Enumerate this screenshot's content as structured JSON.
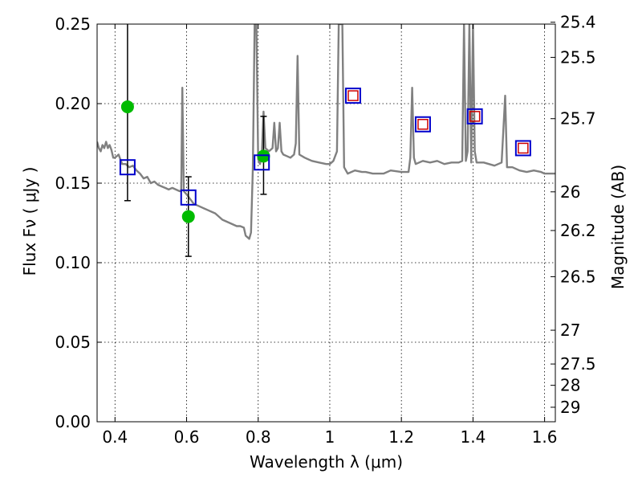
{
  "chart_data": {
    "type": "line",
    "xlabel": "Wavelength  λ (μm)",
    "ylabel": "Flux  Fν  ( μJy )",
    "y2label": "Magnitude (AB)",
    "xlim": [
      0.35,
      1.63
    ],
    "ylim": [
      0.0,
      0.25
    ],
    "grid": true,
    "x_ticks": [
      {
        "value": 0.4,
        "label": "0.4"
      },
      {
        "value": 0.6,
        "label": "0.6"
      },
      {
        "value": 0.8,
        "label": "0.8"
      },
      {
        "value": 1.0,
        "label": "1"
      },
      {
        "value": 1.2,
        "label": "1.2"
      },
      {
        "value": 1.4,
        "label": "1.4"
      },
      {
        "value": 1.6,
        "label": "1.6"
      }
    ],
    "y_ticks": [
      {
        "value": 0.0,
        "label": "0.00"
      },
      {
        "value": 0.05,
        "label": "0.05"
      },
      {
        "value": 0.1,
        "label": "0.10"
      },
      {
        "value": 0.15,
        "label": "0.15"
      },
      {
        "value": 0.2,
        "label": "0.20"
      },
      {
        "value": 0.25,
        "label": "0.25"
      }
    ],
    "y2_ticks": [
      {
        "value": 25.4,
        "label": "25.4"
      },
      {
        "value": 25.5,
        "label": "25.5"
      },
      {
        "value": 25.7,
        "label": "25.7"
      },
      {
        "value": 26,
        "label": "26"
      },
      {
        "value": 26.2,
        "label": "26.2"
      },
      {
        "value": 26.5,
        "label": "26.5"
      },
      {
        "value": 27,
        "label": "27"
      },
      {
        "value": 27.5,
        "label": "27.5"
      },
      {
        "value": 28,
        "label": "28"
      },
      {
        "value": 29,
        "label": "29"
      }
    ],
    "series": [
      {
        "kind": "line",
        "color": "#808080",
        "points": [
          [
            0.35,
            0.176
          ],
          [
            0.355,
            0.172
          ],
          [
            0.36,
            0.17
          ],
          [
            0.365,
            0.174
          ],
          [
            0.37,
            0.172
          ],
          [
            0.375,
            0.176
          ],
          [
            0.38,
            0.172
          ],
          [
            0.385,
            0.174
          ],
          [
            0.39,
            0.171
          ],
          [
            0.395,
            0.166
          ],
          [
            0.4,
            0.166
          ],
          [
            0.41,
            0.168
          ],
          [
            0.42,
            0.162
          ],
          [
            0.43,
            0.162
          ],
          [
            0.44,
            0.16
          ],
          [
            0.45,
            0.161
          ],
          [
            0.46,
            0.158
          ],
          [
            0.47,
            0.156
          ],
          [
            0.48,
            0.153
          ],
          [
            0.49,
            0.154
          ],
          [
            0.5,
            0.15
          ],
          [
            0.51,
            0.151
          ],
          [
            0.52,
            0.149
          ],
          [
            0.53,
            0.148
          ],
          [
            0.54,
            0.147
          ],
          [
            0.55,
            0.146
          ],
          [
            0.56,
            0.147
          ],
          [
            0.57,
            0.146
          ],
          [
            0.58,
            0.145
          ],
          [
            0.585,
            0.145
          ],
          [
            0.588,
            0.21
          ],
          [
            0.592,
            0.145
          ],
          [
            0.6,
            0.143
          ],
          [
            0.61,
            0.14
          ],
          [
            0.62,
            0.137
          ],
          [
            0.63,
            0.136
          ],
          [
            0.64,
            0.135
          ],
          [
            0.66,
            0.133
          ],
          [
            0.68,
            0.131
          ],
          [
            0.7,
            0.127
          ],
          [
            0.72,
            0.125
          ],
          [
            0.74,
            0.123
          ],
          [
            0.75,
            0.123
          ],
          [
            0.76,
            0.122
          ],
          [
            0.765,
            0.117
          ],
          [
            0.775,
            0.115
          ],
          [
            0.78,
            0.119
          ],
          [
            0.785,
            0.16
          ],
          [
            0.79,
            0.25
          ],
          [
            0.795,
            0.25
          ],
          [
            0.8,
            0.165
          ],
          [
            0.805,
            0.162
          ],
          [
            0.81,
            0.168
          ],
          [
            0.815,
            0.195
          ],
          [
            0.82,
            0.172
          ],
          [
            0.83,
            0.17
          ],
          [
            0.84,
            0.172
          ],
          [
            0.845,
            0.188
          ],
          [
            0.85,
            0.17
          ],
          [
            0.855,
            0.172
          ],
          [
            0.86,
            0.188
          ],
          [
            0.865,
            0.17
          ],
          [
            0.87,
            0.168
          ],
          [
            0.88,
            0.167
          ],
          [
            0.89,
            0.166
          ],
          [
            0.9,
            0.168
          ],
          [
            0.905,
            0.175
          ],
          [
            0.91,
            0.23
          ],
          [
            0.915,
            0.168
          ],
          [
            0.93,
            0.166
          ],
          [
            0.95,
            0.164
          ],
          [
            0.97,
            0.163
          ],
          [
            0.99,
            0.162
          ],
          [
            1.0,
            0.162
          ],
          [
            1.01,
            0.164
          ],
          [
            1.02,
            0.17
          ],
          [
            1.025,
            0.25
          ],
          [
            1.035,
            0.25
          ],
          [
            1.04,
            0.16
          ],
          [
            1.05,
            0.156
          ],
          [
            1.07,
            0.158
          ],
          [
            1.09,
            0.157
          ],
          [
            1.1,
            0.157
          ],
          [
            1.12,
            0.156
          ],
          [
            1.15,
            0.156
          ],
          [
            1.17,
            0.158
          ],
          [
            1.2,
            0.157
          ],
          [
            1.22,
            0.157
          ],
          [
            1.225,
            0.166
          ],
          [
            1.23,
            0.21
          ],
          [
            1.235,
            0.166
          ],
          [
            1.24,
            0.162
          ],
          [
            1.26,
            0.164
          ],
          [
            1.28,
            0.163
          ],
          [
            1.3,
            0.164
          ],
          [
            1.32,
            0.162
          ],
          [
            1.34,
            0.163
          ],
          [
            1.36,
            0.163
          ],
          [
            1.37,
            0.164
          ],
          [
            1.375,
            0.25
          ],
          [
            1.38,
            0.164
          ],
          [
            1.385,
            0.17
          ],
          [
            1.39,
            0.25
          ],
          [
            1.395,
            0.163
          ],
          [
            1.4,
            0.25
          ],
          [
            1.405,
            0.17
          ],
          [
            1.41,
            0.163
          ],
          [
            1.43,
            0.163
          ],
          [
            1.46,
            0.161
          ],
          [
            1.48,
            0.163
          ],
          [
            1.49,
            0.205
          ],
          [
            1.495,
            0.16
          ],
          [
            1.51,
            0.16
          ],
          [
            1.53,
            0.158
          ],
          [
            1.55,
            0.157
          ],
          [
            1.57,
            0.158
          ],
          [
            1.59,
            0.157
          ],
          [
            1.6,
            0.156
          ],
          [
            1.63,
            0.156
          ]
        ]
      },
      {
        "kind": "markers",
        "marker": "circle",
        "color": "#00bb00",
        "points": [
          [
            0.435,
            0.198
          ],
          [
            0.605,
            0.129
          ],
          [
            0.815,
            0.167
          ]
        ],
        "errors": [
          [
            0.139,
            0.255
          ],
          [
            0.104,
            0.154
          ],
          [
            0.143,
            0.192
          ]
        ]
      },
      {
        "kind": "markers",
        "marker": "square",
        "color": "#0000cc",
        "points": [
          [
            0.435,
            0.16
          ],
          [
            0.605,
            0.141
          ],
          [
            0.81,
            0.163
          ],
          [
            1.065,
            0.205
          ],
          [
            1.26,
            0.187
          ],
          [
            1.405,
            0.192
          ],
          [
            1.54,
            0.172
          ]
        ]
      },
      {
        "kind": "markers",
        "marker": "square-small",
        "color": "#cc0000",
        "points": [
          [
            1.065,
            0.205
          ],
          [
            1.26,
            0.187
          ],
          [
            1.405,
            0.192
          ],
          [
            1.54,
            0.172
          ]
        ]
      }
    ]
  }
}
